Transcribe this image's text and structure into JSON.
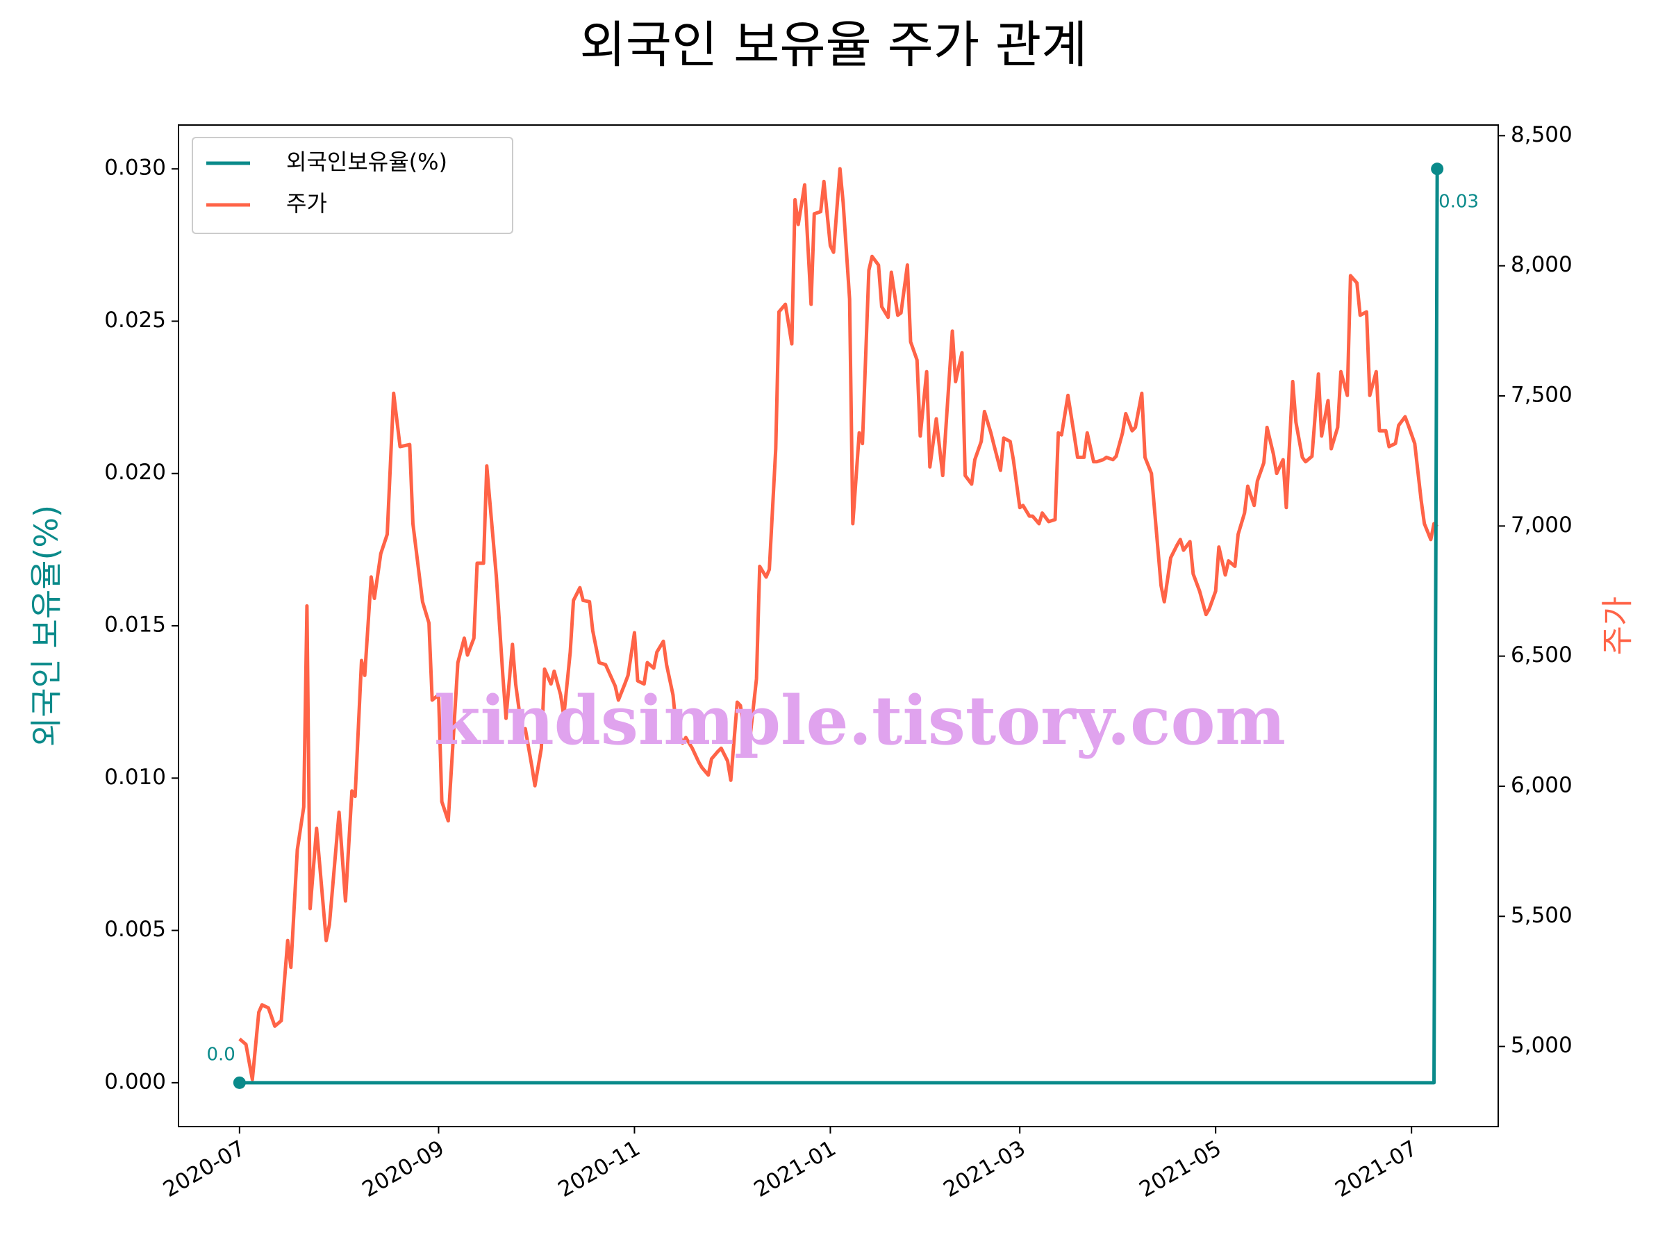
{
  "chart_data": {
    "type": "line",
    "title": "외국인 보유율 주가 관계",
    "ylabel": "외국인 보유율(%)",
    "y2label": "주가",
    "watermark": "kindsimple.tistory.com",
    "legend": "upper left",
    "grid": false,
    "xlim": [
      "2020-06-12",
      "2021-07-28"
    ],
    "xticks": [
      {
        "value": "2020-07-01",
        "label": "2020-07"
      },
      {
        "value": "2020-09-01",
        "label": "2020-09"
      },
      {
        "value": "2020-11-01",
        "label": "2020-11"
      },
      {
        "value": "2021-01-01",
        "label": "2021-01"
      },
      {
        "value": "2021-03-01",
        "label": "2021-03"
      },
      {
        "value": "2021-05-01",
        "label": "2021-05"
      },
      {
        "value": "2021-07-01",
        "label": "2021-07"
      }
    ],
    "ylim": [
      -0.00144,
      0.03144
    ],
    "yticks": [
      {
        "value": 0,
        "label": "0.000"
      },
      {
        "value": 0.005,
        "label": "0.005"
      },
      {
        "value": 0.01,
        "label": "0.010"
      },
      {
        "value": 0.015,
        "label": "0.015"
      },
      {
        "value": 0.02,
        "label": "0.020"
      },
      {
        "value": 0.025,
        "label": "0.025"
      },
      {
        "value": 0.03,
        "label": "0.030"
      }
    ],
    "y2lim": [
      4692,
      8541
    ],
    "y2ticks": [
      {
        "value": 5000,
        "label": "5,000"
      },
      {
        "value": 5500,
        "label": "5,500"
      },
      {
        "value": 6000,
        "label": "6,000"
      },
      {
        "value": 6500,
        "label": "6,500"
      },
      {
        "value": 7000,
        "label": "7,000"
      },
      {
        "value": 7500,
        "label": "7,500"
      },
      {
        "value": 8000,
        "label": "8,000"
      },
      {
        "value": 8500,
        "label": "8,500"
      }
    ],
    "series": [
      {
        "name": "외국인보유율(%)",
        "color": "#0a8a8a",
        "x": [
          "2020-07-01",
          "2021-07-08",
          "2021-07-09"
        ],
        "values": [
          0,
          0,
          0.03
        ],
        "value_labels": [
          "0.0",
          null,
          "0.03"
        ]
      },
      {
        "name": "주가",
        "color": "#ff6347",
        "axis": "y2",
        "x": [
          "2020-07-01",
          "2020-07-03",
          "2020-07-05",
          "2020-07-07",
          "2020-07-08",
          "2020-07-10",
          "2020-07-12",
          "2020-07-14",
          "2020-07-16",
          "2020-07-17",
          "2020-07-19",
          "2020-07-21",
          "2020-07-22",
          "2020-07-23",
          "2020-07-25",
          "2020-07-28",
          "2020-07-29",
          "2020-08-01",
          "2020-08-03",
          "2020-08-05",
          "2020-08-06",
          "2020-08-08",
          "2020-08-09",
          "2020-08-11",
          "2020-08-12",
          "2020-08-14",
          "2020-08-16",
          "2020-08-18",
          "2020-08-20",
          "2020-08-23",
          "2020-08-24",
          "2020-08-27",
          "2020-08-29",
          "2020-08-30",
          "2020-09-01",
          "2020-09-02",
          "2020-09-04",
          "2020-09-07",
          "2020-09-09",
          "2020-09-10",
          "2020-09-12",
          "2020-09-13",
          "2020-09-15",
          "2020-09-16",
          "2020-09-19",
          "2020-09-21",
          "2020-09-22",
          "2020-09-24",
          "2020-09-25",
          "2020-09-27",
          "2020-09-28",
          "2020-09-30",
          "2020-10-01",
          "2020-10-03",
          "2020-10-04",
          "2020-10-06",
          "2020-10-07",
          "2020-10-09",
          "2020-10-10",
          "2020-10-12",
          "2020-10-13",
          "2020-10-15",
          "2020-10-16",
          "2020-10-18",
          "2020-10-19",
          "2020-10-21",
          "2020-10-23",
          "2020-10-26",
          "2020-10-27",
          "2020-10-29",
          "2020-10-30",
          "2020-11-01",
          "2020-11-02",
          "2020-11-04",
          "2020-11-05",
          "2020-11-07",
          "2020-11-08",
          "2020-11-10",
          "2020-11-11",
          "2020-11-13",
          "2020-11-14",
          "2020-11-16",
          "2020-11-17",
          "2020-11-19",
          "2020-11-21",
          "2020-11-22",
          "2020-11-24",
          "2020-11-25",
          "2020-11-27",
          "2020-11-28",
          "2020-11-30",
          "2020-12-01",
          "2020-12-03",
          "2020-12-04",
          "2020-12-06",
          "2020-12-07",
          "2020-12-09",
          "2020-12-10",
          "2020-12-12",
          "2020-12-13",
          "2020-12-15",
          "2020-12-16",
          "2020-12-18",
          "2020-12-20",
          "2020-12-21",
          "2020-12-22",
          "2020-12-24",
          "2020-12-26",
          "2020-12-27",
          "2020-12-29",
          "2020-12-30",
          "2021-01-01",
          "2021-01-02",
          "2021-01-04",
          "2021-01-05",
          "2021-01-07",
          "2021-01-08",
          "2021-01-10",
          "2021-01-11",
          "2021-01-13",
          "2021-01-14",
          "2021-01-16",
          "2021-01-17",
          "2021-01-19",
          "2021-01-20",
          "2021-01-22",
          "2021-01-23",
          "2021-01-25",
          "2021-01-26",
          "2021-01-28",
          "2021-01-29",
          "2021-01-31",
          "2021-02-01",
          "2021-02-03",
          "2021-02-05",
          "2021-02-06",
          "2021-02-08",
          "2021-02-09",
          "2021-02-11",
          "2021-02-12",
          "2021-02-14",
          "2021-02-15",
          "2021-02-17",
          "2021-02-18",
          "2021-02-20",
          "2021-02-21",
          "2021-02-23",
          "2021-02-24",
          "2021-02-26",
          "2021-02-27",
          "2021-03-01",
          "2021-03-02",
          "2021-03-04",
          "2021-03-05",
          "2021-03-07",
          "2021-03-08",
          "2021-03-10",
          "2021-03-12",
          "2021-03-13",
          "2021-03-14",
          "2021-03-16",
          "2021-03-18",
          "2021-03-19",
          "2021-03-21",
          "2021-03-22",
          "2021-03-24",
          "2021-03-25",
          "2021-03-27",
          "2021-03-28",
          "2021-03-30",
          "2021-03-31",
          "2021-04-02",
          "2021-04-03",
          "2021-04-05",
          "2021-04-06",
          "2021-04-08",
          "2021-04-09",
          "2021-04-11",
          "2021-04-12",
          "2021-04-14",
          "2021-04-15",
          "2021-04-17",
          "2021-04-19",
          "2021-04-20",
          "2021-04-21",
          "2021-04-23",
          "2021-04-24",
          "2021-04-26",
          "2021-04-28",
          "2021-04-29",
          "2021-05-01",
          "2021-05-02",
          "2021-05-04",
          "2021-05-05",
          "2021-05-07",
          "2021-05-08",
          "2021-05-10",
          "2021-05-11",
          "2021-05-13",
          "2021-05-14",
          "2021-05-16",
          "2021-05-17",
          "2021-05-19",
          "2021-05-20",
          "2021-05-22",
          "2021-05-23",
          "2021-05-25",
          "2021-05-26",
          "2021-05-28",
          "2021-05-29",
          "2021-05-31",
          "2021-06-02",
          "2021-06-03",
          "2021-06-05",
          "2021-06-06",
          "2021-06-08",
          "2021-06-09",
          "2021-06-11",
          "2021-06-12",
          "2021-06-14",
          "2021-06-15",
          "2021-06-17",
          "2021-06-18",
          "2021-06-20",
          "2021-06-21",
          "2021-06-23",
          "2021-06-24",
          "2021-06-26",
          "2021-06-27",
          "2021-06-29",
          "2021-06-30",
          "2021-07-02",
          "2021-07-04",
          "2021-07-05",
          "2021-07-07",
          "2021-07-08",
          "2021-07-09"
        ],
        "values": [
          5029,
          5008,
          4873,
          5131,
          5160,
          5148,
          5078,
          5099,
          5407,
          5304,
          5756,
          5920,
          6693,
          5530,
          5838,
          5407,
          5468,
          5900,
          5559,
          5982,
          5961,
          6483,
          6426,
          6804,
          6722,
          6894,
          6968,
          7510,
          7305,
          7313,
          7009,
          6709,
          6627,
          6331,
          6351,
          5941,
          5867,
          6475,
          6569,
          6504,
          6569,
          6857,
          6857,
          7231,
          6804,
          6426,
          6261,
          6545,
          6393,
          6208,
          6221,
          6080,
          6002,
          6146,
          6450,
          6393,
          6442,
          6351,
          6269,
          6516,
          6714,
          6763,
          6714,
          6709,
          6598,
          6475,
          6467,
          6385,
          6331,
          6393,
          6426,
          6590,
          6405,
          6393,
          6475,
          6454,
          6516,
          6557,
          6467,
          6351,
          6228,
          6166,
          6187,
          6146,
          6093,
          6072,
          6043,
          6105,
          6134,
          6146,
          6097,
          6023,
          6323,
          6310,
          6146,
          6187,
          6413,
          6845,
          6804,
          6833,
          7297,
          7823,
          7852,
          7700,
          8254,
          8159,
          8311,
          7852,
          8200,
          8208,
          8324,
          8077,
          8052,
          8373,
          8242,
          7872,
          7009,
          7358,
          7317,
          7983,
          8036,
          8003,
          7843,
          7802,
          7975,
          7810,
          7819,
          8003,
          7708,
          7638,
          7346,
          7593,
          7227,
          7412,
          7194,
          7379,
          7749,
          7555,
          7666,
          7194,
          7161,
          7255,
          7325,
          7440,
          7358,
          7309,
          7214,
          7338,
          7325,
          7255,
          7071,
          7079,
          7038,
          7038,
          7009,
          7050,
          7017,
          7025,
          7358,
          7350,
          7502,
          7346,
          7264,
          7264,
          7358,
          7247,
          7247,
          7255,
          7264,
          7255,
          7268,
          7358,
          7432,
          7366,
          7379,
          7510,
          7264,
          7202,
          7058,
          6771,
          6709,
          6878,
          6927,
          6948,
          6907,
          6940,
          6816,
          6750,
          6660,
          6681,
          6750,
          6919,
          6812,
          6866,
          6845,
          6968,
          7050,
          7153,
          7079,
          7173,
          7243,
          7379,
          7276,
          7202,
          7255,
          7071,
          7555,
          7399,
          7264,
          7247,
          7268,
          7584,
          7346,
          7482,
          7297,
          7379,
          7593,
          7502,
          7962,
          7934,
          7810,
          7823,
          7502,
          7593,
          7366,
          7366,
          7305,
          7317,
          7387,
          7420,
          7387,
          7317,
          7099,
          7009,
          6948,
          7009,
          6997
        ]
      }
    ]
  }
}
